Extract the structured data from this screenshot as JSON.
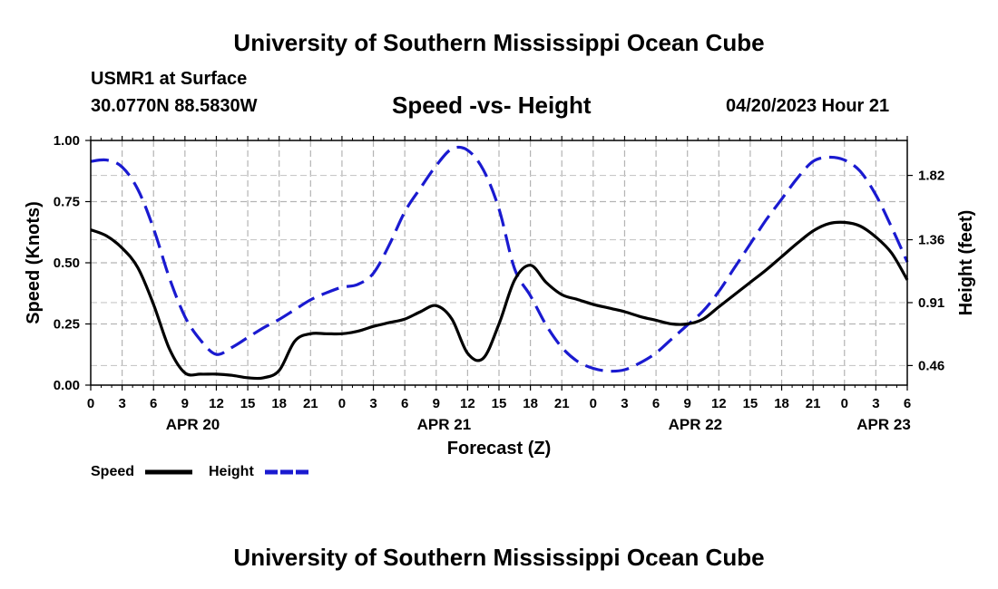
{
  "header": {
    "title": "University of Southern Mississippi Ocean Cube",
    "station": "USMR1 at Surface",
    "coords": "30.0770N  88.5830W",
    "chart_title": "Speed -vs- Height",
    "datetime": "04/20/2023 Hour 21"
  },
  "footer": {
    "title": "University of Southern Mississippi Ocean Cube"
  },
  "chart_data": {
    "type": "line",
    "title": "Speed -vs- Height",
    "xlabel": "Forecast (Z)",
    "ylabel": "Speed (Knots)",
    "y2label": "Height (feet)",
    "xlim": [
      0,
      78
    ],
    "ylim": [
      0,
      1.0
    ],
    "y2lim": [
      0.32,
      2.07
    ],
    "x_tick_labels": [
      "0",
      "3",
      "6",
      "9",
      "12",
      "15",
      "18",
      "21",
      "0",
      "3",
      "6",
      "9",
      "12",
      "15",
      "18",
      "21",
      "0",
      "3",
      "6",
      "9",
      "12",
      "15",
      "18",
      "21",
      "0",
      "3",
      "6"
    ],
    "y_ticks": [
      0.0,
      0.25,
      0.5,
      0.75,
      1.0
    ],
    "y_tick_labels": [
      "0.00",
      "0.25",
      "0.50",
      "0.75",
      "1.00"
    ],
    "y2_ticks": [
      0.46,
      0.91,
      1.36,
      1.82
    ],
    "y2_tick_labels": [
      "0.46",
      "0.91",
      "1.36",
      "1.82"
    ],
    "date_labels": [
      {
        "x": 9.75,
        "label": "APR 20"
      },
      {
        "x": 33.75,
        "label": "APR 21"
      },
      {
        "x": 57.75,
        "label": "APR 22"
      },
      {
        "x": 75.75,
        "label": "APR 23"
      }
    ],
    "grid": true,
    "legend": "bottom-left",
    "series": [
      {
        "name": "Speed",
        "axis": "left",
        "color": "#000000",
        "style": "solid",
        "x": [
          0,
          1.5,
          3,
          4.5,
          6,
          7.5,
          9,
          10.5,
          12,
          13.5,
          15,
          16.5,
          18,
          19.5,
          21,
          22.5,
          24,
          25.5,
          27,
          28.5,
          30,
          31.5,
          33,
          34.5,
          36,
          37.5,
          39,
          40.5,
          42,
          43.5,
          45,
          46.5,
          48,
          49.5,
          51,
          52.5,
          54,
          55.5,
          57,
          58.5,
          60,
          61.5,
          63,
          64.5,
          66,
          67.5,
          69,
          70.5,
          72,
          73.5,
          75,
          76.5,
          78
        ],
        "values": [
          0.635,
          0.61,
          0.56,
          0.48,
          0.33,
          0.15,
          0.05,
          0.045,
          0.045,
          0.04,
          0.03,
          0.03,
          0.06,
          0.18,
          0.21,
          0.21,
          0.21,
          0.22,
          0.24,
          0.255,
          0.27,
          0.3,
          0.325,
          0.27,
          0.13,
          0.11,
          0.25,
          0.43,
          0.49,
          0.42,
          0.37,
          0.35,
          0.33,
          0.315,
          0.3,
          0.28,
          0.265,
          0.25,
          0.25,
          0.27,
          0.32,
          0.37,
          0.42,
          0.47,
          0.525,
          0.58,
          0.63,
          0.66,
          0.665,
          0.65,
          0.605,
          0.54,
          0.43
        ]
      },
      {
        "name": "Height",
        "axis": "right",
        "color": "#1a1ad0",
        "style": "dashed",
        "x": [
          0,
          1.5,
          3,
          4.5,
          6,
          7.5,
          9,
          10.5,
          12,
          13.5,
          15,
          16.5,
          18,
          19.5,
          21,
          22.5,
          24,
          25.5,
          27,
          28.5,
          30,
          31.5,
          33,
          34.5,
          36,
          37.5,
          39,
          40.5,
          42,
          43.5,
          45,
          46.5,
          48,
          49.5,
          51,
          52.5,
          54,
          55.5,
          57,
          58.5,
          60,
          61.5,
          63,
          64.5,
          66,
          67.5,
          69,
          70.5,
          72,
          73.5,
          75,
          76.5,
          78
        ],
        "values": [
          1.92,
          1.93,
          1.88,
          1.72,
          1.44,
          1.09,
          0.81,
          0.64,
          0.54,
          0.59,
          0.66,
          0.73,
          0.79,
          0.86,
          0.93,
          0.98,
          1.02,
          1.04,
          1.12,
          1.32,
          1.56,
          1.73,
          1.89,
          2.01,
          2.0,
          1.86,
          1.58,
          1.15,
          0.96,
          0.75,
          0.59,
          0.49,
          0.44,
          0.42,
          0.43,
          0.48,
          0.55,
          0.65,
          0.75,
          0.85,
          0.99,
          1.16,
          1.33,
          1.5,
          1.65,
          1.8,
          1.92,
          1.95,
          1.93,
          1.85,
          1.68,
          1.45,
          1.2
        ]
      }
    ]
  }
}
